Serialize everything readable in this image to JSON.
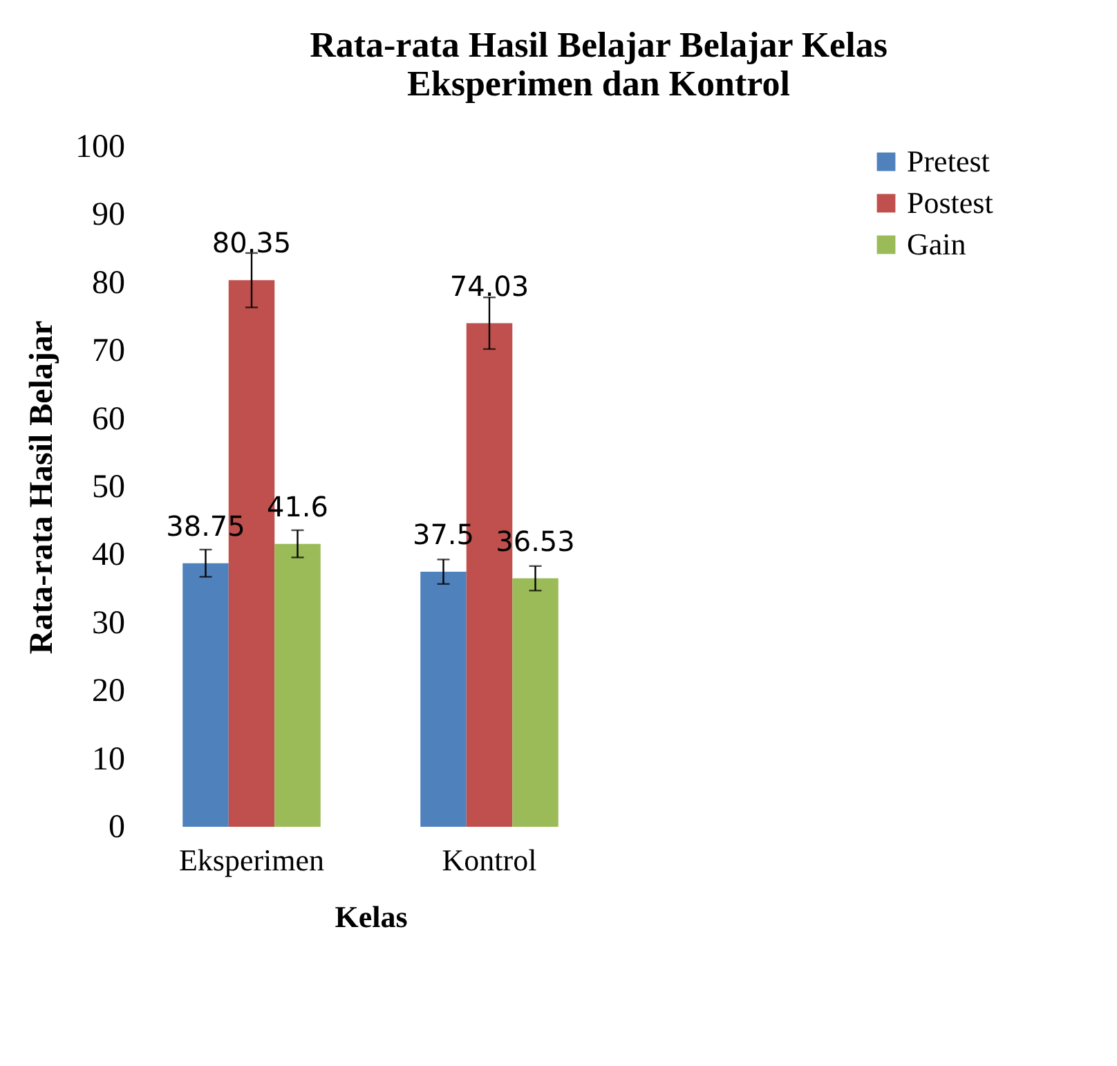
{
  "chart_data": {
    "type": "bar",
    "title": "Rata-rata Hasil Belajar Belajar Kelas Eksperimen dan Kontrol",
    "xlabel": "Kelas",
    "ylabel": "Rata-rata Hasil Belajar",
    "categories": [
      "Eksperimen",
      "Kontrol"
    ],
    "series": [
      {
        "name": "Pretest",
        "color": "#4f81bd",
        "values": [
          38.75,
          37.5
        ],
        "errors": [
          2,
          1.8
        ]
      },
      {
        "name": "Postest",
        "color": "#c0504d",
        "values": [
          80.35,
          74.03
        ],
        "errors": [
          4,
          3.8
        ]
      },
      {
        "name": "Gain",
        "color": "#9bbb59",
        "values": [
          41.6,
          36.53
        ],
        "errors": [
          2,
          1.8
        ]
      }
    ],
    "ylim": [
      0,
      100
    ],
    "yticks": [
      0,
      10,
      20,
      30,
      40,
      50,
      60,
      70,
      80,
      90,
      100
    ],
    "data_labels": true,
    "legend": "right"
  }
}
